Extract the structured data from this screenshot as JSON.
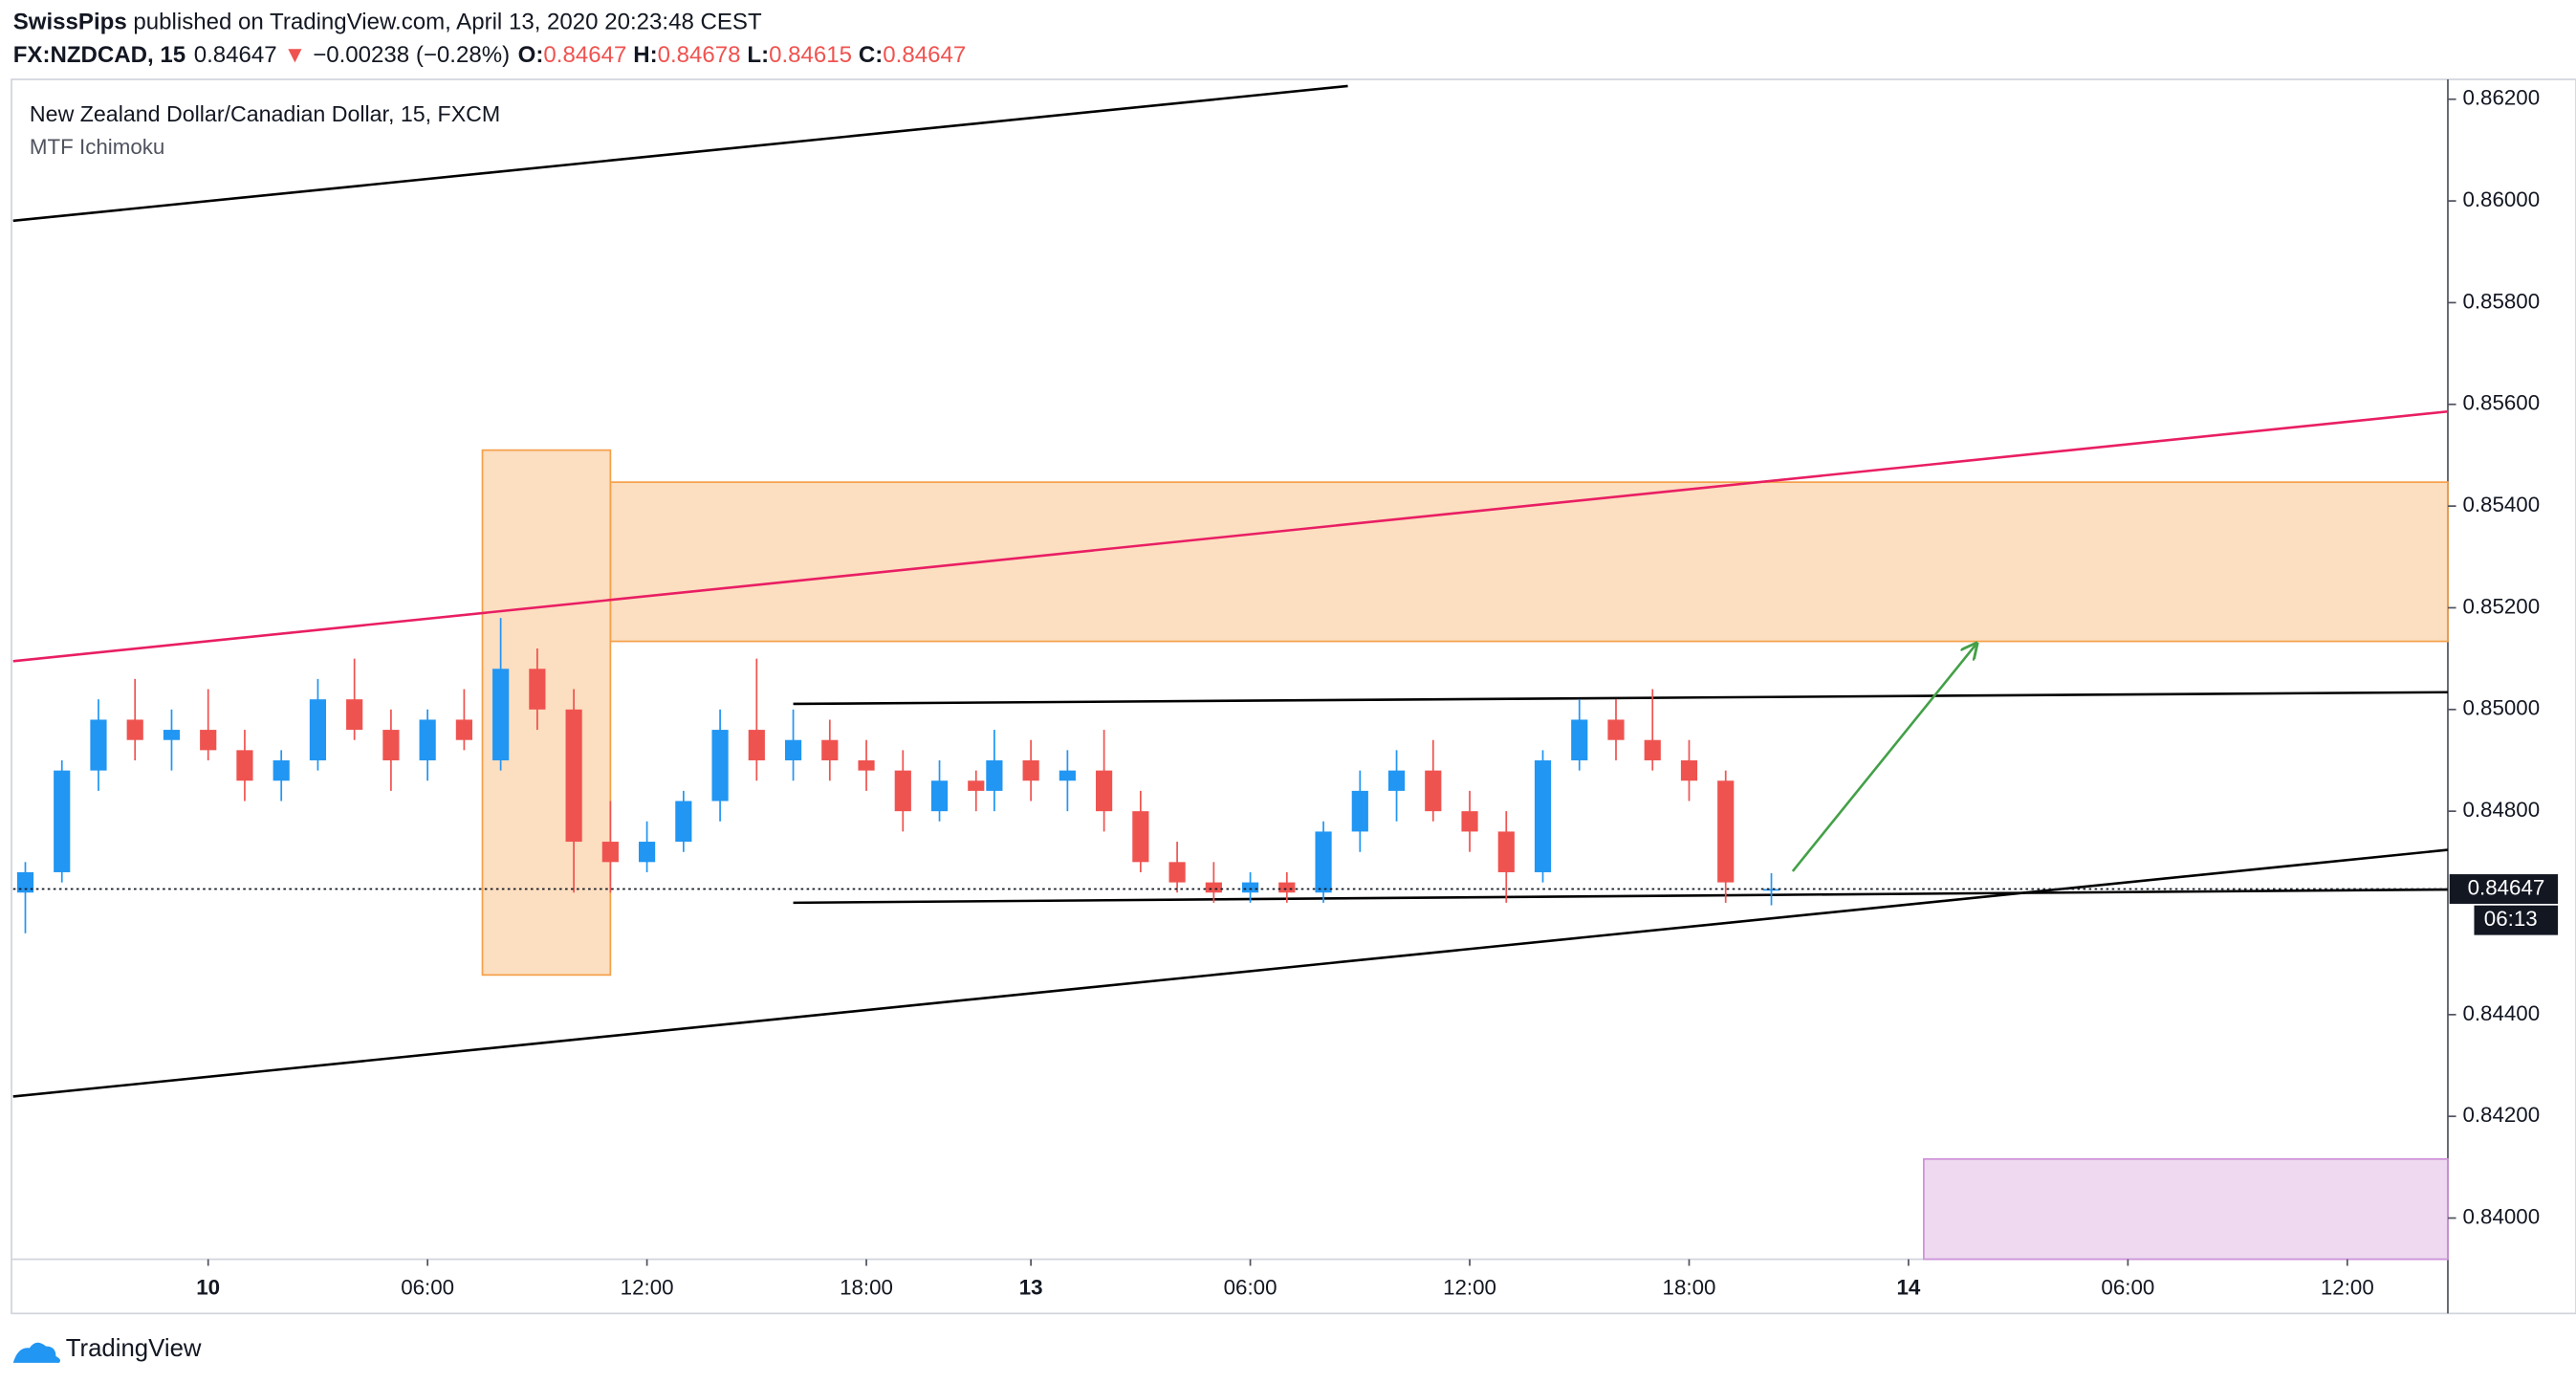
{
  "header": {
    "publisher": "SwissPips",
    "published": "published on TradingView.com, April 13, 2020 20:23:48 CEST",
    "symbol": "FX:NZDCAD, 15",
    "last": "0.84647",
    "arrow": "▼",
    "change": "−0.00238 (−0.28%)",
    "o_label": "O:",
    "o": "0.84647",
    "h_label": "H:",
    "h": "0.84678",
    "l_label": "L:",
    "l": "0.84615",
    "c_label": "C:",
    "c": "0.84647"
  },
  "footer": {
    "brand": "TradingView"
  },
  "chart_data": {
    "type": "candlestick",
    "title": "New Zealand Dollar/Canadian Dollar, 15, FXCM",
    "subtitle": "MTF Ichimoku",
    "up_color": "#2196f3",
    "down_color": "#ef5350",
    "x": [
      "2020-04-09 19:00",
      "2020-04-09 20:00",
      "2020-04-09 21:00",
      "2020-04-09 22:00",
      "2020-04-09 23:00",
      "2020-04-10 00:00",
      "2020-04-10 01:00",
      "2020-04-10 02:00",
      "2020-04-10 03:00",
      "2020-04-10 04:00",
      "2020-04-10 05:00",
      "2020-04-10 06:00",
      "2020-04-10 07:00",
      "2020-04-10 08:00",
      "2020-04-10 09:00",
      "2020-04-10 10:00",
      "2020-04-10 11:00",
      "2020-04-10 12:00",
      "2020-04-10 13:00",
      "2020-04-10 14:00",
      "2020-04-10 15:00",
      "2020-04-10 16:00",
      "2020-04-10 17:00",
      "2020-04-10 18:00",
      "2020-04-10 19:00",
      "2020-04-10 20:00",
      "2020-04-10 21:00",
      "2020-04-12 23:00",
      "2020-04-13 00:00",
      "2020-04-13 01:00",
      "2020-04-13 02:00",
      "2020-04-13 03:00",
      "2020-04-13 04:00",
      "2020-04-13 05:00",
      "2020-04-13 06:00",
      "2020-04-13 07:00",
      "2020-04-13 08:00",
      "2020-04-13 09:00",
      "2020-04-13 10:00",
      "2020-04-13 11:00",
      "2020-04-13 12:00",
      "2020-04-13 13:00",
      "2020-04-13 14:00",
      "2020-04-13 15:00",
      "2020-04-13 16:00",
      "2020-04-13 17:00",
      "2020-04-13 18:00",
      "2020-04-13 19:00",
      "2020-04-13 20:15"
    ],
    "open": [
      0.8464,
      0.8468,
      0.8488,
      0.8498,
      0.8494,
      0.8496,
      0.8492,
      0.8486,
      0.849,
      0.8502,
      0.8496,
      0.849,
      0.8498,
      0.849,
      0.8508,
      0.85,
      0.8474,
      0.847,
      0.8474,
      0.8482,
      0.8496,
      0.849,
      0.8494,
      0.849,
      0.8488,
      0.848,
      0.8486,
      0.8484,
      0.849,
      0.8486,
      0.8488,
      0.848,
      0.847,
      0.8466,
      0.8464,
      0.8466,
      0.8464,
      0.8476,
      0.8484,
      0.8488,
      0.848,
      0.8476,
      0.8468,
      0.849,
      0.8498,
      0.8494,
      0.849,
      0.8486,
      0.84647
    ],
    "high": [
      0.847,
      0.849,
      0.8502,
      0.8506,
      0.85,
      0.8504,
      0.8496,
      0.8492,
      0.8506,
      0.851,
      0.85,
      0.85,
      0.8504,
      0.8518,
      0.8512,
      0.8504,
      0.8482,
      0.8478,
      0.8484,
      0.85,
      0.851,
      0.85,
      0.8498,
      0.8494,
      0.8492,
      0.849,
      0.8488,
      0.8496,
      0.8494,
      0.8492,
      0.8496,
      0.8484,
      0.8474,
      0.847,
      0.8468,
      0.8468,
      0.8478,
      0.8488,
      0.8492,
      0.8494,
      0.8484,
      0.848,
      0.8492,
      0.8502,
      0.8502,
      0.8504,
      0.8494,
      0.8488,
      0.84678
    ],
    "low": [
      0.8456,
      0.8466,
      0.8484,
      0.849,
      0.8488,
      0.849,
      0.8482,
      0.8482,
      0.8488,
      0.8494,
      0.8484,
      0.8486,
      0.8492,
      0.8488,
      0.8496,
      0.8464,
      0.8464,
      0.8468,
      0.8472,
      0.8478,
      0.8486,
      0.8486,
      0.8486,
      0.8484,
      0.8476,
      0.8478,
      0.848,
      0.848,
      0.8482,
      0.848,
      0.8476,
      0.8468,
      0.8464,
      0.8462,
      0.8462,
      0.8462,
      0.8462,
      0.8472,
      0.8478,
      0.8478,
      0.8472,
      0.8462,
      0.8466,
      0.8488,
      0.849,
      0.8488,
      0.8482,
      0.8462,
      0.84615
    ],
    "close": [
      0.8468,
      0.8488,
      0.8498,
      0.8494,
      0.8496,
      0.8492,
      0.8486,
      0.849,
      0.8502,
      0.8496,
      0.849,
      0.8498,
      0.8494,
      0.8508,
      0.85,
      0.8474,
      0.847,
      0.8474,
      0.8482,
      0.8496,
      0.849,
      0.8494,
      0.849,
      0.8488,
      0.848,
      0.8486,
      0.8484,
      0.849,
      0.8486,
      0.8488,
      0.848,
      0.847,
      0.8466,
      0.8464,
      0.8466,
      0.8464,
      0.8476,
      0.8484,
      0.8488,
      0.848,
      0.8476,
      0.8468,
      0.849,
      0.8498,
      0.8494,
      0.849,
      0.8486,
      0.8466,
      0.84647
    ],
    "xlim": [
      "2020-04-09 18:40",
      "2020-04-14 14:45"
    ],
    "session_break": [
      "2020-04-10 21:30",
      "2020-04-12 23:00"
    ],
    "xticks": [
      {
        "value": "2020-04-10 00:00",
        "label": "10"
      },
      {
        "value": "2020-04-10 06:00",
        "label": "06:00"
      },
      {
        "value": "2020-04-10 12:00",
        "label": "12:00"
      },
      {
        "value": "2020-04-10 18:00",
        "label": "18:00"
      },
      {
        "value": "2020-04-13 00:00",
        "label": "13"
      },
      {
        "value": "2020-04-13 06:00",
        "label": "06:00"
      },
      {
        "value": "2020-04-13 12:00",
        "label": "12:00"
      },
      {
        "value": "2020-04-13 18:00",
        "label": "18:00"
      },
      {
        "value": "2020-04-14 00:00",
        "label": "14"
      },
      {
        "value": "2020-04-14 06:00",
        "label": "06:00"
      },
      {
        "value": "2020-04-14 12:00",
        "label": "12:00"
      }
    ],
    "ylim": [
      0.83919,
      0.86239
    ],
    "yticks": [
      {
        "value": 0.862,
        "label": "0.86200"
      },
      {
        "value": 0.86,
        "label": "0.86000"
      },
      {
        "value": 0.858,
        "label": "0.85800"
      },
      {
        "value": 0.856,
        "label": "0.85600"
      },
      {
        "value": 0.854,
        "label": "0.85400"
      },
      {
        "value": 0.852,
        "label": "0.85200"
      },
      {
        "value": 0.85,
        "label": "0.85000"
      },
      {
        "value": 0.848,
        "label": "0.84800"
      },
      {
        "value": 0.844,
        "label": "0.84400"
      },
      {
        "value": 0.842,
        "label": "0.84200"
      },
      {
        "value": 0.84,
        "label": "0.84000"
      }
    ],
    "grid": false,
    "last_price": {
      "value": 0.84647,
      "label": "0.84647"
    },
    "countdown": "06:13",
    "drawings": [
      {
        "kind": "rect",
        "color": "#f5a04a",
        "x": [
          "2020-04-10 07:30",
          "2020-04-10 11:00"
        ],
        "y": [
          0.8551,
          0.84478
        ]
      },
      {
        "kind": "rect",
        "color": "#f5a04a",
        "x": [
          "2020-04-10 11:00",
          "2020-04-14 14:45"
        ],
        "y": [
          0.85447,
          0.85134
        ]
      },
      {
        "kind": "rect",
        "color": "#ce93d8",
        "x": [
          "2020-04-14 00:25",
          "2020-04-14 14:45"
        ],
        "y": [
          0.84116,
          0.83919
        ]
      },
      {
        "kind": "line",
        "color": "#000000",
        "x": [
          "2020-04-09 18:40",
          "2020-04-13 08:40"
        ],
        "y": [
          0.85961,
          0.86226
        ]
      },
      {
        "kind": "line",
        "color": "#e91e63",
        "x": [
          "2020-04-09 18:40",
          "2020-04-14 14:45"
        ],
        "y": [
          0.85095,
          0.85586
        ]
      },
      {
        "kind": "line",
        "color": "#000000",
        "x": [
          "2020-04-09 18:40",
          "2020-04-14 14:45"
        ],
        "y": [
          0.84239,
          0.84724
        ]
      },
      {
        "kind": "line",
        "color": "#000000",
        "x": [
          "2020-04-10 16:00",
          "2020-04-14 14:45"
        ],
        "y": [
          0.85011,
          0.85034
        ]
      },
      {
        "kind": "line",
        "color": "#000000",
        "x": [
          "2020-04-10 16:00",
          "2020-04-14 14:45"
        ],
        "y": [
          0.8462,
          0.84646
        ]
      },
      {
        "kind": "arrow",
        "color": "#43a047",
        "x": [
          "2020-04-13 20:50",
          "2020-04-14 01:50"
        ],
        "y": [
          0.84682,
          0.85127
        ]
      }
    ]
  }
}
